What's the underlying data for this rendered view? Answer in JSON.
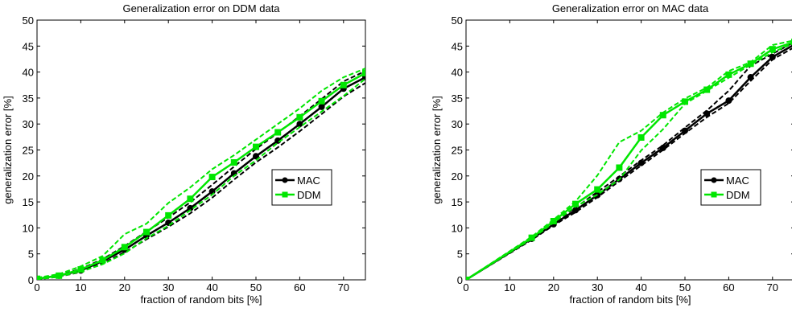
{
  "chart_data": [
    {
      "type": "line",
      "title": "Generalization error on DDM data",
      "xlabel": "fraction of random bits [%]",
      "ylabel": "generalization error [%]",
      "xlim": [
        0,
        75
      ],
      "ylim": [
        0,
        50
      ],
      "xticks": [
        0,
        10,
        20,
        30,
        40,
        50,
        60,
        70
      ],
      "yticks": [
        0,
        5,
        10,
        15,
        20,
        25,
        30,
        35,
        40,
        45,
        50
      ],
      "legend_position": "center-right",
      "x": [
        0,
        5,
        10,
        15,
        20,
        25,
        30,
        35,
        40,
        45,
        50,
        55,
        60,
        65,
        70,
        75
      ],
      "series": [
        {
          "name": "MAC",
          "color": "#000000",
          "marker": "circle",
          "values": [
            0.2,
            0.8,
            1.8,
            3.6,
            5.8,
            8.5,
            11.0,
            13.8,
            17.0,
            20.5,
            23.8,
            26.8,
            30.0,
            33.3,
            36.8,
            39.0
          ],
          "bounds": [
            [
              0.3,
              0.9,
              2.1,
              4.0,
              6.5,
              9.3,
              12.0,
              14.9,
              18.3,
              21.8,
              25.2,
              28.3,
              31.5,
              34.8,
              38.2,
              40.2
            ],
            [
              0.1,
              0.6,
              1.5,
              3.2,
              5.3,
              7.8,
              10.2,
              12.8,
              15.8,
              19.3,
              22.6,
              25.5,
              28.6,
              31.9,
              35.3,
              37.9
            ]
          ]
        },
        {
          "name": "DDM",
          "color": "#00e600",
          "marker": "square",
          "values": [
            0.2,
            0.8,
            2.0,
            3.8,
            6.3,
            9.2,
            12.4,
            15.6,
            19.8,
            22.6,
            25.6,
            28.4,
            31.3,
            34.4,
            37.5,
            39.8
          ],
          "bounds": [
            [
              0.4,
              1.1,
              2.6,
              4.6,
              8.8,
              10.8,
              14.8,
              17.8,
              21.3,
              24.0,
              27.0,
              30.0,
              33.0,
              36.4,
              39.0,
              40.7
            ],
            [
              0.1,
              0.6,
              1.6,
              3.0,
              5.1,
              8.0,
              10.4,
              13.4,
              16.4,
              20.0,
              23.0,
              26.4,
              29.4,
              32.4,
              35.4,
              38.7
            ]
          ]
        }
      ]
    },
    {
      "type": "line",
      "title": "Generalization error on MAC data",
      "xlabel": "fraction of random bits [%]",
      "ylabel": "generalization error [%]",
      "xlim": [
        0,
        75
      ],
      "ylim": [
        0,
        50
      ],
      "xticks": [
        0,
        10,
        20,
        30,
        40,
        50,
        60,
        70
      ],
      "yticks": [
        0,
        5,
        10,
        15,
        20,
        25,
        30,
        35,
        40,
        45,
        50
      ],
      "legend_position": "center-right",
      "series": [
        {
          "name": "MAC",
          "color": "#000000",
          "marker": "circle",
          "x": [
            0,
            15,
            20,
            25,
            30,
            35,
            40,
            45,
            50,
            55,
            60,
            65,
            70,
            75
          ],
          "values": [
            0.0,
            7.9,
            10.7,
            13.4,
            16.3,
            19.4,
            22.5,
            25.4,
            28.7,
            32.0,
            34.5,
            39.0,
            42.9,
            45.3
          ],
          "bounds": [
            [
              0.0,
              8.1,
              11.0,
              13.9,
              16.9,
              19.9,
              23.0,
              25.9,
              29.3,
              32.6,
              36.4,
              41.2,
              43.5,
              45.8
            ],
            [
              0.0,
              7.7,
              10.5,
              13.0,
              15.9,
              19.0,
              22.0,
              25.0,
              28.2,
              31.3,
              34.0,
              38.3,
              42.4,
              44.8
            ]
          ]
        },
        {
          "name": "DDM",
          "color": "#00e600",
          "marker": "square",
          "x": [
            0,
            15,
            20,
            25,
            30,
            35,
            40,
            45,
            50,
            55,
            60,
            65,
            70,
            75
          ],
          "values": [
            0.0,
            8.1,
            11.3,
            14.6,
            17.4,
            21.6,
            27.4,
            31.7,
            34.3,
            36.6,
            39.5,
            41.6,
            44.4,
            45.8
          ],
          "bounds": [
            [
              0.0,
              8.3,
              11.6,
              15.1,
              20.1,
              26.5,
              28.7,
              32.2,
              34.9,
              37.0,
              40.2,
              41.9,
              45.2,
              46.1
            ],
            [
              0.0,
              7.9,
              11.0,
              14.1,
              16.4,
              19.3,
              24.9,
              29.0,
              33.9,
              36.4,
              38.9,
              41.4,
              43.8,
              45.6
            ]
          ]
        }
      ]
    }
  ]
}
